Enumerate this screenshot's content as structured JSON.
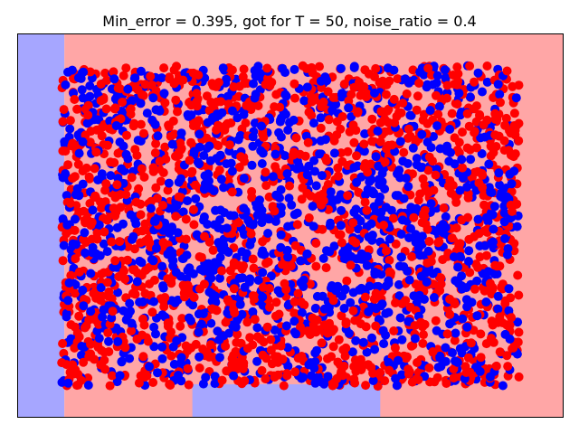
{
  "chart_data": {
    "type": "scatter",
    "title": "Min_error = 0.395, got for T = 50, noise_ratio = 0.4",
    "xlabel": "",
    "ylabel": "",
    "xlim": [
      0,
      1
    ],
    "ylim": [
      0,
      1
    ],
    "grid": false,
    "axis_ticks": false,
    "legend": "none",
    "colors": {
      "class_positive_point": "#ff0000",
      "class_negative_point": "#0000ff",
      "region_positive": "#ffa6a6",
      "region_negative": "#a6a6ff"
    },
    "decision_regions": [
      {
        "label": "negative",
        "x": [
          0.0,
          0.085
        ],
        "y": [
          0.0,
          1.0
        ]
      },
      {
        "label": "positive",
        "x": [
          0.085,
          1.0
        ],
        "y": [
          0.0,
          1.0
        ]
      },
      {
        "label": "negative",
        "x": [
          0.32,
          0.665
        ],
        "y": [
          0.0,
          0.085
        ]
      }
    ],
    "series": [
      {
        "class": "positive",
        "color": "#ff0000",
        "n_points": 1700
      },
      {
        "class": "negative",
        "color": "#0000ff",
        "n_points": 1300
      }
    ],
    "data_range": {
      "x": [
        0.08,
        0.92
      ],
      "y": [
        0.08,
        0.92
      ]
    },
    "noise_ratio": 0.4,
    "label_rule": "blue concentrated near center (radius ~0.25), red elsewhere, 40% labels flipped"
  }
}
